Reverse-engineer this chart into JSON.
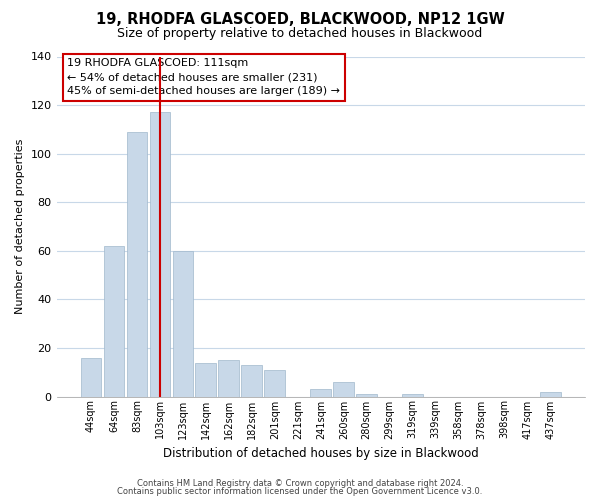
{
  "title": "19, RHODFA GLASCOED, BLACKWOOD, NP12 1GW",
  "subtitle": "Size of property relative to detached houses in Blackwood",
  "xlabel": "Distribution of detached houses by size in Blackwood",
  "ylabel": "Number of detached properties",
  "bar_labels": [
    "44sqm",
    "64sqm",
    "83sqm",
    "103sqm",
    "123sqm",
    "142sqm",
    "162sqm",
    "182sqm",
    "201sqm",
    "221sqm",
    "241sqm",
    "260sqm",
    "280sqm",
    "299sqm",
    "319sqm",
    "339sqm",
    "358sqm",
    "378sqm",
    "398sqm",
    "417sqm",
    "437sqm"
  ],
  "bar_values": [
    16,
    62,
    109,
    117,
    60,
    14,
    15,
    13,
    11,
    0,
    3,
    6,
    1,
    0,
    1,
    0,
    0,
    0,
    0,
    0,
    2
  ],
  "bar_color": "#c8d8e8",
  "bar_edge_color": "#a0b8cc",
  "vline_bar_index": 3,
  "vline_color": "#cc0000",
  "ylim": [
    0,
    140
  ],
  "yticks": [
    0,
    20,
    40,
    60,
    80,
    100,
    120,
    140
  ],
  "annotation_title": "19 RHODFA GLASCOED: 111sqm",
  "annotation_line1": "← 54% of detached houses are smaller (231)",
  "annotation_line2": "45% of semi-detached houses are larger (189) →",
  "footer_line1": "Contains HM Land Registry data © Crown copyright and database right 2024.",
  "footer_line2": "Contains public sector information licensed under the Open Government Licence v3.0.",
  "background_color": "#ffffff",
  "grid_color": "#c8d8e8"
}
